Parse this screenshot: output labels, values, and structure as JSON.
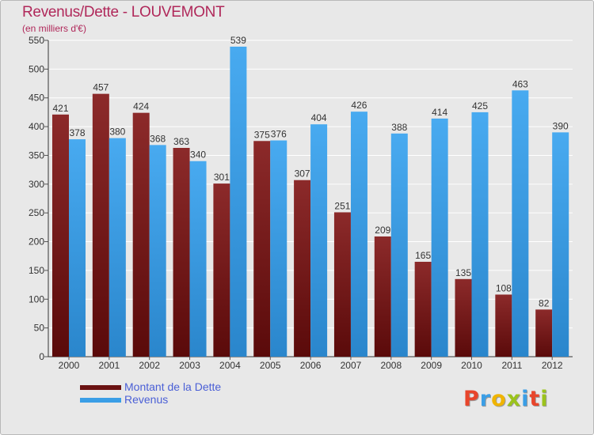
{
  "title": "Revenus/Dette - LOUVEMONT",
  "subtitle": "(en milliers d'€)",
  "colors": {
    "debt": "#7a1a1a",
    "revenue": "#3a9ee6",
    "title": "#b0285a",
    "axis_text": "#333333",
    "gridline": "#ffffff",
    "legend_text": "#4a5fd6"
  },
  "legend": {
    "items": [
      {
        "label": "Montant de la Dette",
        "color": "#6a1212"
      },
      {
        "label": "Revenus",
        "color": "#3a9ee6"
      }
    ]
  },
  "logo": {
    "letters": [
      "P",
      "r",
      "o",
      "x",
      "i",
      "t",
      "i"
    ],
    "colors": [
      "#e8452b",
      "#3a9ee6",
      "#f0b400",
      "#9bc31c",
      "#3a9ee6",
      "#e8452b",
      "#9bc31c"
    ]
  },
  "chart_data": {
    "type": "bar",
    "title": "Revenus/Dette - LOUVEMONT",
    "subtitle": "(en milliers d'€)",
    "categories": [
      "2000",
      "2001",
      "2002",
      "2003",
      "2004",
      "2005",
      "2006",
      "2007",
      "2008",
      "2009",
      "2010",
      "2011",
      "2012"
    ],
    "series": [
      {
        "name": "Montant de la Dette",
        "values": [
          421,
          457,
          424,
          363,
          301,
          375,
          307,
          251,
          209,
          165,
          135,
          108,
          82
        ]
      },
      {
        "name": "Revenus",
        "values": [
          378,
          380,
          368,
          340,
          539,
          376,
          404,
          426,
          388,
          414,
          425,
          463,
          390
        ]
      }
    ],
    "yticks": [
      0,
      50,
      100,
      150,
      200,
      250,
      300,
      350,
      400,
      450,
      500,
      550
    ],
    "ylim": [
      0,
      550
    ],
    "grid": true,
    "legend_position": "bottom-left",
    "xlabel": "",
    "ylabel": ""
  }
}
